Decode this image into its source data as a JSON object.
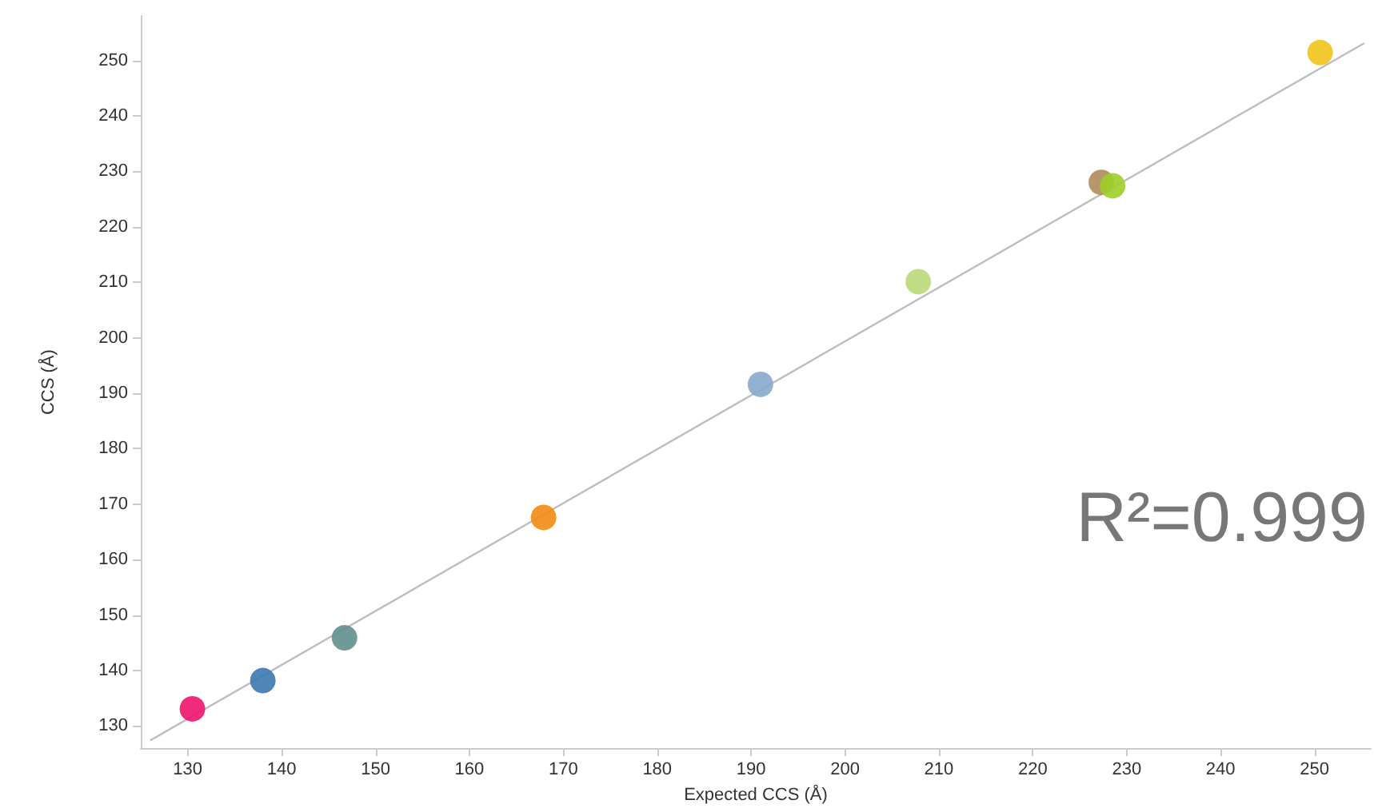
{
  "chart_data": {
    "type": "scatter",
    "xlabel": "Expected CCS (Å)",
    "ylabel": "CCS (Å)",
    "xlim": [
      125,
      256
    ],
    "ylim": [
      126,
      258
    ],
    "xticks": [
      130,
      140,
      150,
      160,
      170,
      180,
      190,
      200,
      210,
      220,
      230,
      240,
      250
    ],
    "yticks": [
      130,
      140,
      150,
      160,
      170,
      180,
      190,
      200,
      210,
      220,
      230,
      240,
      250
    ],
    "grid": false,
    "marker": "circle",
    "series": [
      {
        "x": [
          130.5,
          138.0,
          146.7,
          167.9,
          191.0,
          207.8,
          227.3,
          228.5,
          250.6
        ],
        "values": [
          133.1,
          138.2,
          145.9,
          167.6,
          191.6,
          210.1,
          228.0,
          227.4,
          251.4
        ],
        "colors": [
          "#f0146e",
          "#3d78b0",
          "#5f8f8c",
          "#f28a12",
          "#87a9cb",
          "#b9d878",
          "#b08a5a",
          "#9ccf28",
          "#f2c31a"
        ]
      },
      {
        "type": "line",
        "x": [
          126,
          255.3
        ],
        "values": [
          127.4,
          253.1
        ],
        "color": "#bdbdbd",
        "marker": "none"
      }
    ],
    "annotations": [
      "R²=0.999"
    ]
  }
}
